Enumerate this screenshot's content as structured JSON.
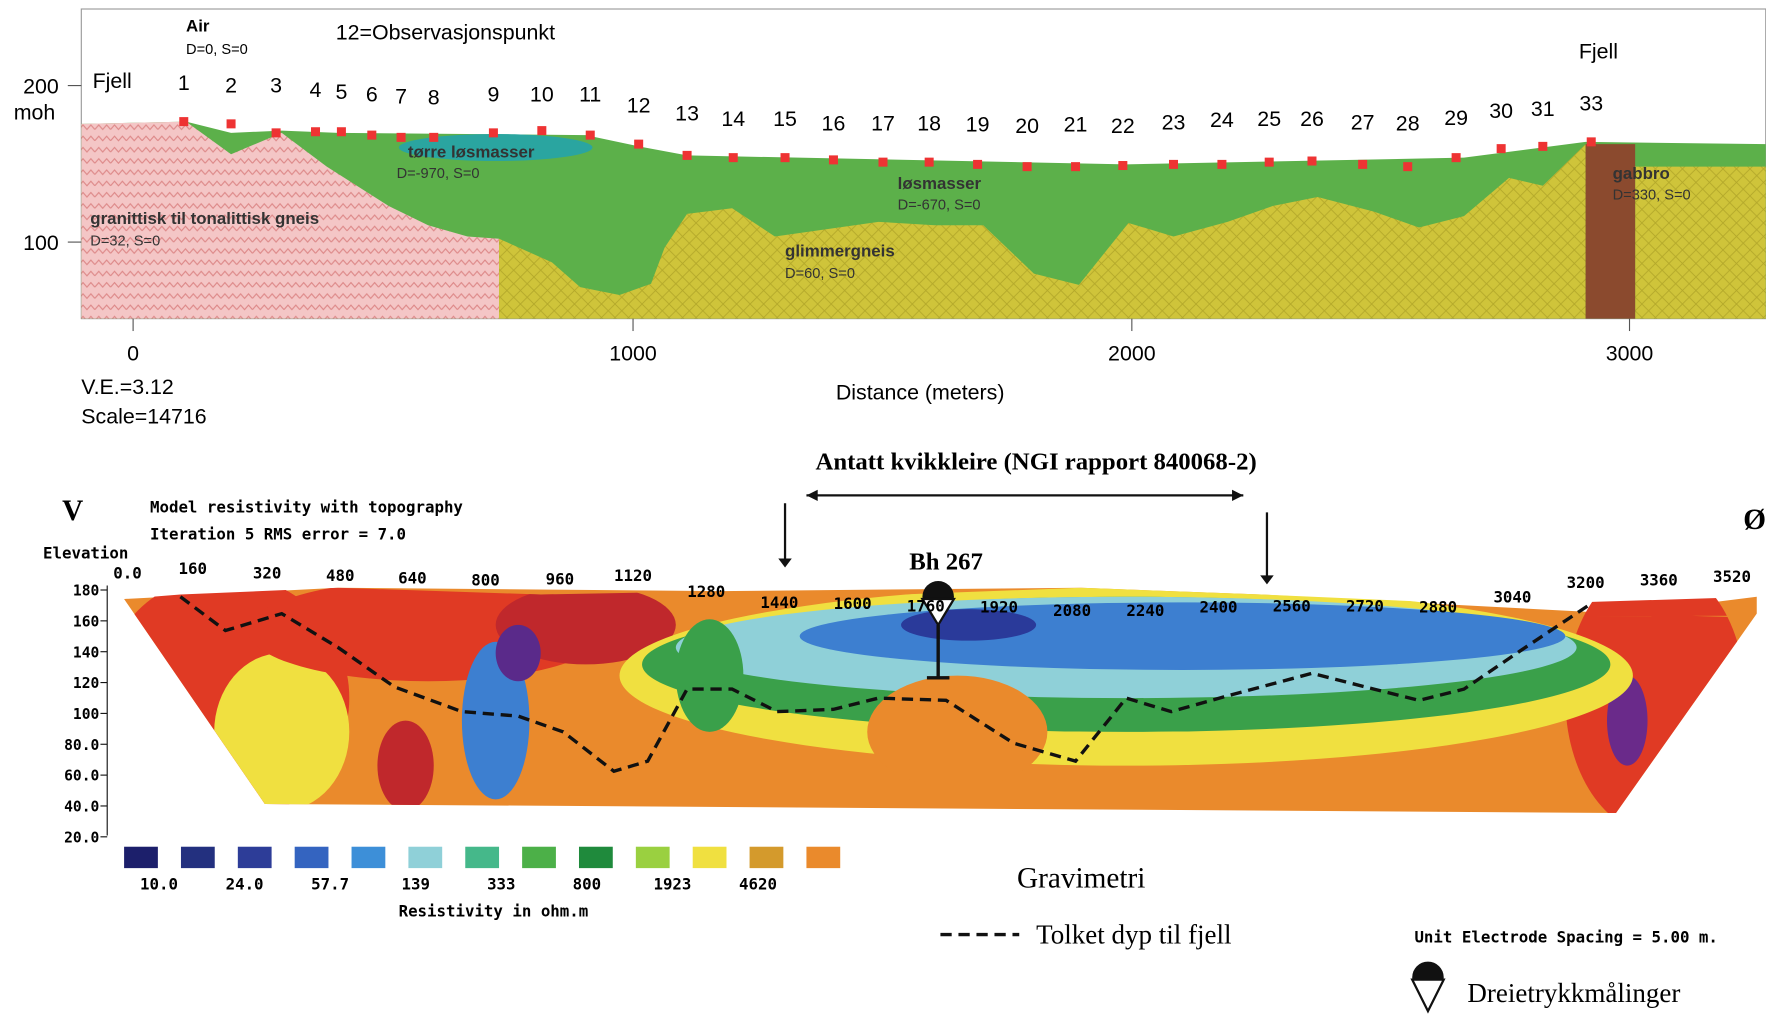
{
  "top": {
    "air": "Air",
    "air_params": "D=0, S=0",
    "legend_note": "12=Observasjonspunkt",
    "fjell_left": "Fjell",
    "fjell_right": "Fjell",
    "points": [
      "1",
      "2",
      "3",
      "4",
      "5",
      "6",
      "7",
      "8",
      "9",
      "10",
      "11",
      "12",
      "13",
      "14",
      "15",
      "16",
      "17",
      "18",
      "19",
      "20",
      "21",
      "22",
      "23",
      "24",
      "25",
      "26",
      "27",
      "28",
      "29",
      "30",
      "31",
      "33"
    ],
    "layers": [
      {
        "name": "tørre løsmasser",
        "params": "D=-970, S=0"
      },
      {
        "name": "løsmasser",
        "params": "D=-670, S=0"
      },
      {
        "name": "granittisk til tonalittisk gneis",
        "params": "D=32, S=0"
      },
      {
        "name": "glimmergneis",
        "params": "D=60, S=0"
      },
      {
        "name": "gabbro",
        "params": "D=330, S=0"
      }
    ],
    "y_ticks": [
      "200",
      "100"
    ],
    "y_unit": "moh",
    "x_ticks": [
      "0",
      "1000",
      "2000",
      "3000"
    ],
    "x_label": "Distance (meters)",
    "ve": "V.E.=3.12",
    "scale": "Scale=14716"
  },
  "bottom": {
    "annotation": "Antatt kvikkleire (NGI rapport 840068-2)",
    "west": "V",
    "east": "Ø",
    "title": "Model resistivity with topography",
    "subtitle": "Iteration 5 RMS error = 7.0",
    "y_label": "Elevation",
    "y_ticks": [
      "180",
      "160",
      "140",
      "120",
      "100",
      "80.0",
      "60.0",
      "40.0",
      "20.0"
    ],
    "x_ticks": [
      "0.0",
      "160",
      "320",
      "480",
      "640",
      "800",
      "960",
      "1120",
      "1280",
      "1440",
      "1600",
      "1760",
      "1920",
      "2080",
      "2240",
      "2400",
      "2560",
      "2720",
      "2880",
      "3040",
      "3200",
      "3360",
      "3520"
    ],
    "borehole": "Bh 267",
    "scale_values": [
      "10.0",
      "24.0",
      "57.7",
      "139",
      "333",
      "800",
      "1923",
      "4620"
    ],
    "scale_label": "Resistivity in ohm.m",
    "gravimetri": "Gravimetri",
    "dashed_legend": "Tolket dyp til fjell",
    "spacing": "Unit Electrode Spacing = 5.00 m.",
    "cpt_legend": "Dreietrykkmålinger"
  }
}
